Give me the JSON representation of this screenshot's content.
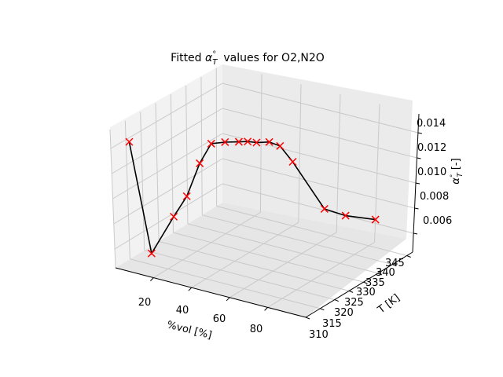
{
  "chart_data": {
    "type": "line",
    "projection": "3d",
    "title_text": "Fitted ",
    "title_symbol": "α",
    "title_symbol_sup": "°",
    "title_symbol_sub": "T",
    "title_suffix": "values for O2,N2O",
    "xlabel": "%vol [%]",
    "ylabel": "T [K]",
    "zlabel_symbol": "α",
    "zlabel_sup": "°",
    "zlabel_sub": "T",
    "zlabel_suffix": "[-]",
    "xlim": [
      0,
      100
    ],
    "ylim": [
      310,
      347
    ],
    "zlim": [
      0.0045,
      0.0155
    ],
    "x_ticks": [
      "20",
      "40",
      "60",
      "80"
    ],
    "y_ticks": [
      "310",
      "315",
      "320",
      "325",
      "330",
      "335",
      "340",
      "345"
    ],
    "z_ticks": [
      "0.006",
      "0.008",
      "0.010",
      "0.012",
      "0.014"
    ],
    "grid": true,
    "line_color": "#000000",
    "marker_color": "#ff0000",
    "marker": "x",
    "points": [
      {
        "x": 5,
        "y": 313,
        "z": 0.0143
      },
      {
        "x": 10,
        "y": 316,
        "z": 0.0052
      },
      {
        "x": 16,
        "y": 320,
        "z": 0.0078
      },
      {
        "x": 20,
        "y": 322,
        "z": 0.0093
      },
      {
        "x": 24,
        "y": 324,
        "z": 0.0118
      },
      {
        "x": 27,
        "y": 326,
        "z": 0.0132
      },
      {
        "x": 31,
        "y": 328,
        "z": 0.0132
      },
      {
        "x": 35,
        "y": 330,
        "z": 0.0131
      },
      {
        "x": 38,
        "y": 331,
        "z": 0.0131
      },
      {
        "x": 41,
        "y": 332,
        "z": 0.013
      },
      {
        "x": 46,
        "y": 333,
        "z": 0.0131
      },
      {
        "x": 50,
        "y": 334,
        "z": 0.0128
      },
      {
        "x": 55,
        "y": 335,
        "z": 0.0116
      },
      {
        "x": 67,
        "y": 338,
        "z": 0.0079
      },
      {
        "x": 75,
        "y": 340,
        "z": 0.0074
      },
      {
        "x": 86,
        "y": 343,
        "z": 0.0071
      }
    ]
  }
}
